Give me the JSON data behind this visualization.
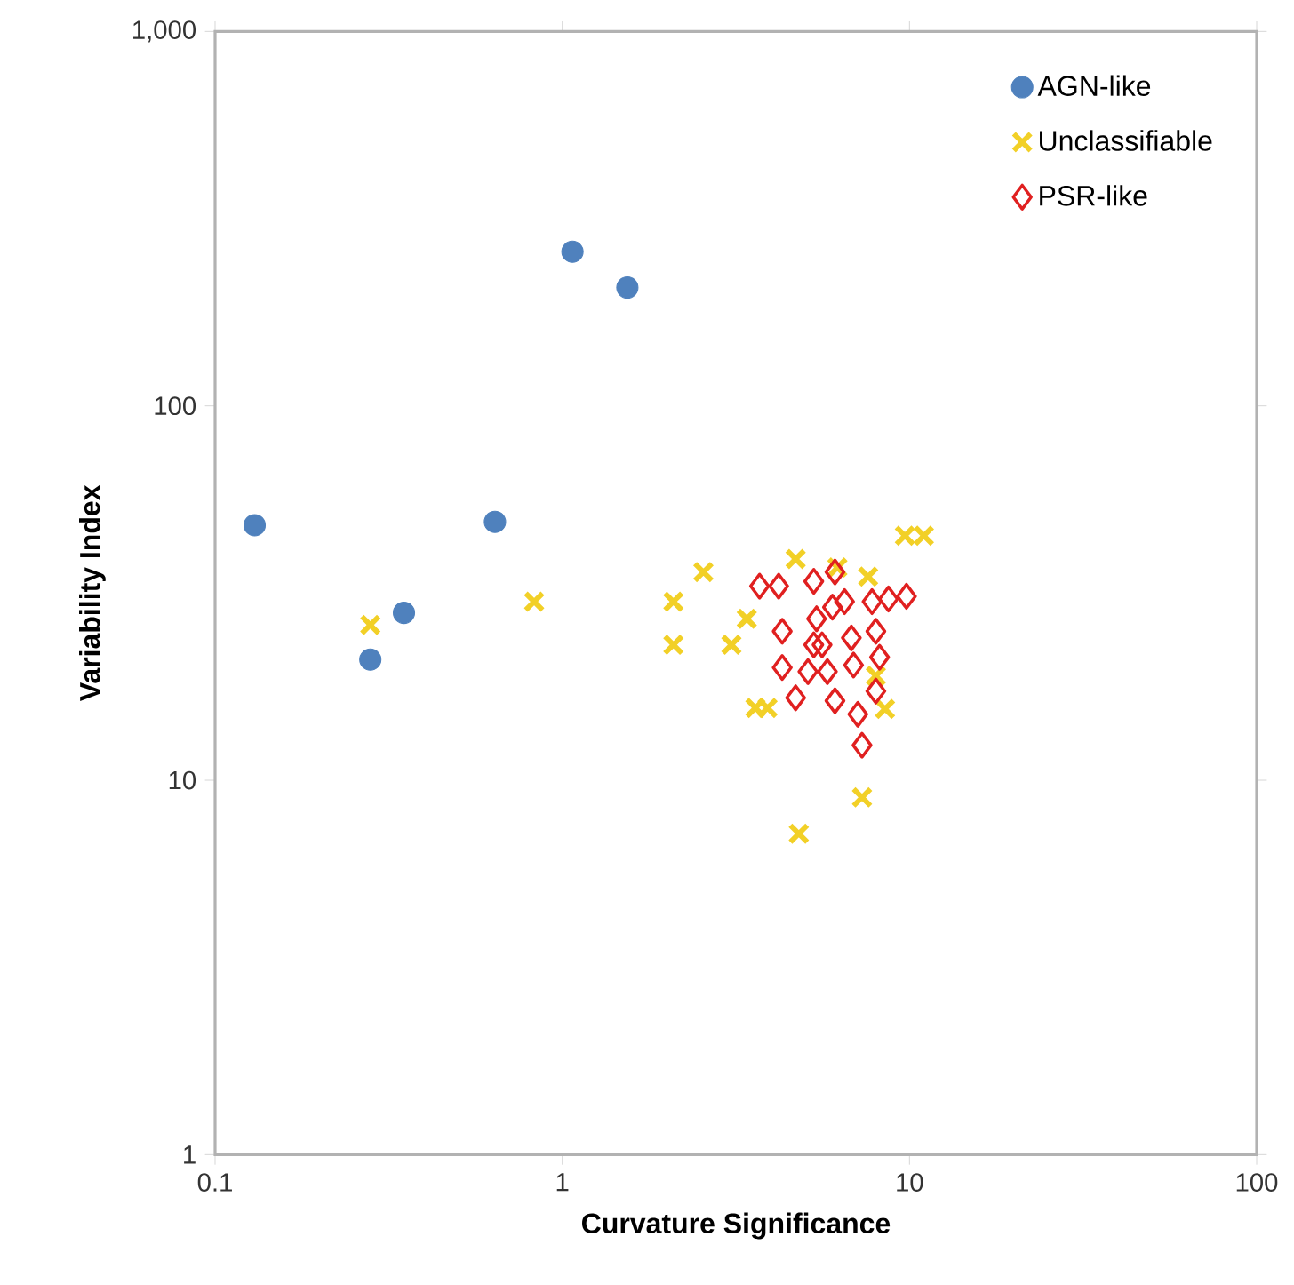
{
  "chart_data": {
    "type": "scatter",
    "xlabel": "Curvature Significance",
    "ylabel": "Variability Index",
    "log": "xy",
    "xlim": [
      0.1,
      100
    ],
    "ylim": [
      1,
      1000
    ],
    "xticks": [
      0.1,
      1,
      10,
      100
    ],
    "yticks": [
      1,
      10,
      100,
      {
        "value": 1000,
        "label": "1,000"
      }
    ],
    "legend": "top right",
    "grid": false,
    "series": [
      {
        "name": "AGN-like",
        "color": "#4f81bd",
        "marker": "circle",
        "x": [
          0.13,
          0.28,
          0.35,
          0.64,
          1.07,
          1.54
        ],
        "values": [
          48,
          21,
          28,
          49,
          258,
          207
        ]
      },
      {
        "name": "Unclassifiable",
        "color": "#f2d027",
        "marker": "cross",
        "x": [
          0.28,
          0.83,
          2.09,
          2.55,
          2.09,
          3.07,
          3.4,
          3.6,
          3.9,
          4.7,
          4.8,
          7.3,
          9.7,
          11,
          7.6,
          8.5,
          6.2,
          8.0
        ],
        "values": [
          26,
          30,
          30,
          36,
          23,
          23,
          27,
          15.6,
          15.6,
          39,
          7.2,
          9.0,
          45,
          45,
          35,
          15.5,
          37,
          19
        ]
      },
      {
        "name": "PSR-like",
        "color": "#e02020",
        "marker": "diamond",
        "x": [
          3.7,
          4.2,
          4.3,
          4.3,
          4.7,
          5.3,
          6.1,
          6.5,
          7.1,
          7.3,
          8.0,
          8.2,
          8.0,
          8.7,
          9.8,
          7.8,
          5.4,
          5.6,
          5.8,
          6.1,
          5.1,
          6.8,
          6.9,
          6.0,
          5.3
        ],
        "values": [
          33,
          33,
          25,
          20,
          16.6,
          34,
          36,
          30,
          15,
          12.4,
          17.3,
          21.3,
          25,
          30.5,
          31,
          30,
          27,
          23,
          19.5,
          16.3,
          19.5,
          24,
          20.3,
          29,
          23
        ]
      }
    ]
  }
}
